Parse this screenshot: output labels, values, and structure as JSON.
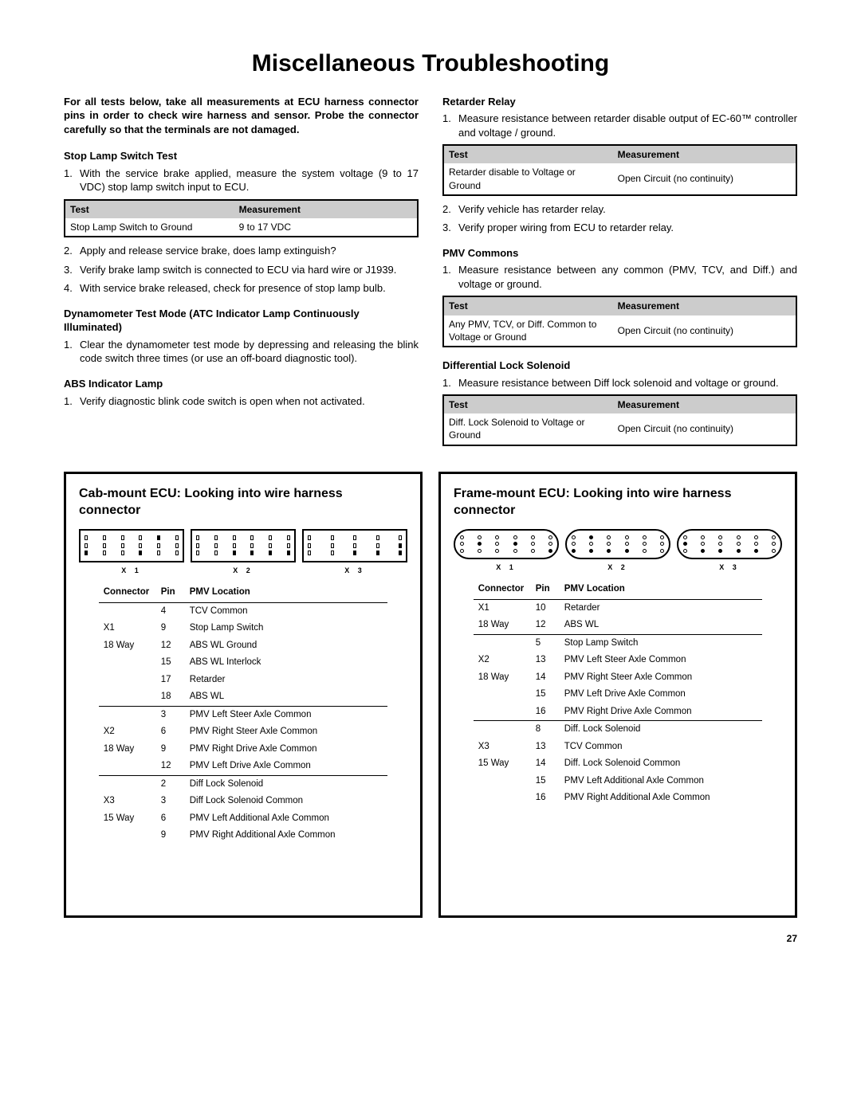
{
  "title": "Miscellaneous Troubleshooting",
  "intro": "For all tests below, take all measurements at ECU harness connector pins in order to check wire harness and sensor. Probe the connector carefully so that the terminals are not damaged.",
  "left": {
    "stopLamp": {
      "heading": "Stop Lamp Switch Test",
      "step1": "With the service brake applied, measure the system voltage (9 to 17 VDC) stop lamp switch input to ECU.",
      "table": {
        "h1": "Test",
        "h2": "Measurement",
        "r1c1": "Stop Lamp Switch to Ground",
        "r1c2": "9 to 17 VDC"
      },
      "step2": "Apply and release service brake, does lamp extinguish?",
      "step3": "Verify brake lamp switch is connected to ECU via hard wire or J1939.",
      "step4": "With service brake released, check for presence of stop lamp bulb."
    },
    "dyno": {
      "heading": "Dynamometer Test Mode (ATC Indicator Lamp Continuously Illuminated)",
      "step1": "Clear the dynamometer test mode by depressing and releasing the blink code switch three times (or use an off-board diagnostic tool)."
    },
    "absLamp": {
      "heading": "ABS Indicator Lamp",
      "step1": "Verify diagnostic blink code switch is open when not activated."
    }
  },
  "right": {
    "retarder": {
      "heading": "Retarder Relay",
      "step1": "Measure resistance between retarder disable output of EC-60™ controller and voltage / ground.",
      "table": {
        "h1": "Test",
        "h2": "Measurement",
        "r1c1": "Retarder disable to Voltage or Ground",
        "r1c2": "Open Circuit (no continuity)"
      },
      "step2": "Verify vehicle has retarder relay.",
      "step3": "Verify proper wiring from ECU to retarder relay."
    },
    "pmv": {
      "heading": "PMV Commons",
      "step1": "Measure resistance between any common (PMV, TCV, and Diff.) and voltage or ground.",
      "table": {
        "h1": "Test",
        "h2": "Measurement",
        "r1c1": "Any PMV, TCV, or Diff. Common to Voltage or Ground",
        "r1c2": "Open Circuit (no continuity)"
      }
    },
    "diff": {
      "heading": "Differential Lock Solenoid",
      "step1": "Measure resistance between Diff lock solenoid and voltage or ground.",
      "table": {
        "h1": "Test",
        "h2": "Measurement",
        "r1c1": "Diff. Lock Solenoid to Voltage or Ground",
        "r1c2": "Open Circuit (no continuity)"
      }
    }
  },
  "cab": {
    "title": "Cab-mount ECU: Looking into wire harness connector",
    "conn_labels": [
      "X 1",
      "X 2",
      "X 3"
    ],
    "table": {
      "h1": "Connector",
      "h2": "Pin",
      "h3": "PMV Location",
      "rows": [
        {
          "c": "",
          "p": "4",
          "l": "TCV Common",
          "sep": false
        },
        {
          "c": "X1",
          "p": "9",
          "l": "Stop Lamp Switch",
          "sep": false
        },
        {
          "c": "18 Way",
          "p": "12",
          "l": "ABS WL Ground",
          "sep": false
        },
        {
          "c": "",
          "p": "15",
          "l": "ABS WL Interlock",
          "sep": false
        },
        {
          "c": "",
          "p": "17",
          "l": "Retarder",
          "sep": false
        },
        {
          "c": "",
          "p": "18",
          "l": "ABS WL",
          "sep": false
        },
        {
          "c": "",
          "p": "3",
          "l": "PMV Left Steer Axle Common",
          "sep": true
        },
        {
          "c": "X2",
          "p": "6",
          "l": "PMV Right Steer Axle Common",
          "sep": false
        },
        {
          "c": "18 Way",
          "p": "9",
          "l": "PMV Right Drive Axle Common",
          "sep": false
        },
        {
          "c": "",
          "p": "12",
          "l": "PMV Left Drive Axle Common",
          "sep": false
        },
        {
          "c": "",
          "p": "2",
          "l": "Diff Lock Solenoid",
          "sep": true
        },
        {
          "c": "X3",
          "p": "3",
          "l": "Diff Lock Solenoid Common",
          "sep": false
        },
        {
          "c": "15 Way",
          "p": "6",
          "l": "PMV Left Additional Axle Common",
          "sep": false
        },
        {
          "c": "",
          "p": "9",
          "l": "PMV Right Additional Axle Common",
          "sep": false
        }
      ]
    }
  },
  "frame": {
    "title": "Frame-mount ECU: Looking into wire harness connector",
    "conn_labels": [
      "X 1",
      "X 2",
      "X 3"
    ],
    "table": {
      "h1": "Connector",
      "h2": "Pin",
      "h3": "PMV Location",
      "rows": [
        {
          "c": "X1",
          "p": "10",
          "l": "Retarder",
          "sep": false
        },
        {
          "c": "18 Way",
          "p": "12",
          "l": "ABS WL",
          "sep": false
        },
        {
          "c": "",
          "p": "5",
          "l": "Stop Lamp Switch",
          "sep": true
        },
        {
          "c": "X2",
          "p": "13",
          "l": "PMV Left Steer Axle Common",
          "sep": false
        },
        {
          "c": "18 Way",
          "p": "14",
          "l": "PMV Right Steer Axle Common",
          "sep": false
        },
        {
          "c": "",
          "p": "15",
          "l": "PMV Left Drive Axle Common",
          "sep": false
        },
        {
          "c": "",
          "p": "16",
          "l": "PMV Right Drive Axle Common",
          "sep": false
        },
        {
          "c": "",
          "p": "8",
          "l": "Diff. Lock Solenoid",
          "sep": true
        },
        {
          "c": "X3",
          "p": "13",
          "l": "TCV Common",
          "sep": false
        },
        {
          "c": "15 Way",
          "p": "14",
          "l": "Diff. Lock Solenoid Common",
          "sep": false
        },
        {
          "c": "",
          "p": "15",
          "l": "PMV Left Additional Axle Common",
          "sep": false
        },
        {
          "c": "",
          "p": "16",
          "l": "PMV Right Additional Axle Common",
          "sep": false
        }
      ]
    }
  },
  "pageNum": "27"
}
